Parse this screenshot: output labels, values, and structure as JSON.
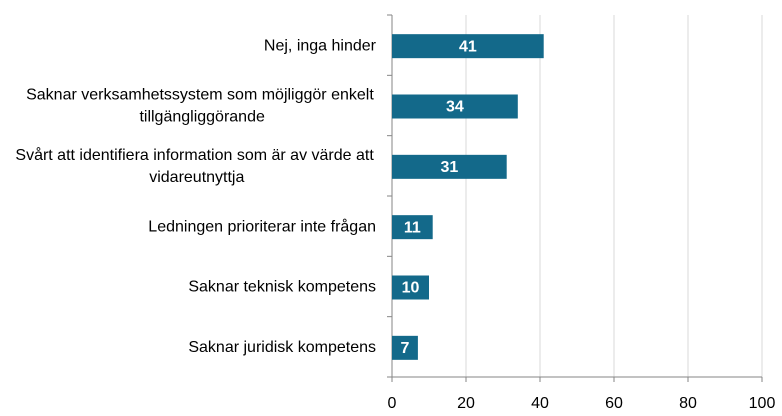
{
  "chart_data": {
    "type": "bar",
    "orientation": "horizontal",
    "categories": [
      "Nej, inga hinder",
      "Saknar verksamhetssystem som möjliggör enkelt tillgängliggörande",
      "Svårt att identifiera information som är av värde att vidareutnyttja",
      "Ledningen prioriterar inte frågan",
      "Saknar teknisk kompetens",
      "Saknar juridisk kompetens"
    ],
    "values": [
      41,
      34,
      31,
      11,
      10,
      7
    ],
    "color": "#13698a",
    "xlim": [
      0,
      100
    ],
    "xticks": [
      0,
      20,
      40,
      60,
      80,
      100
    ],
    "grid": true
  }
}
